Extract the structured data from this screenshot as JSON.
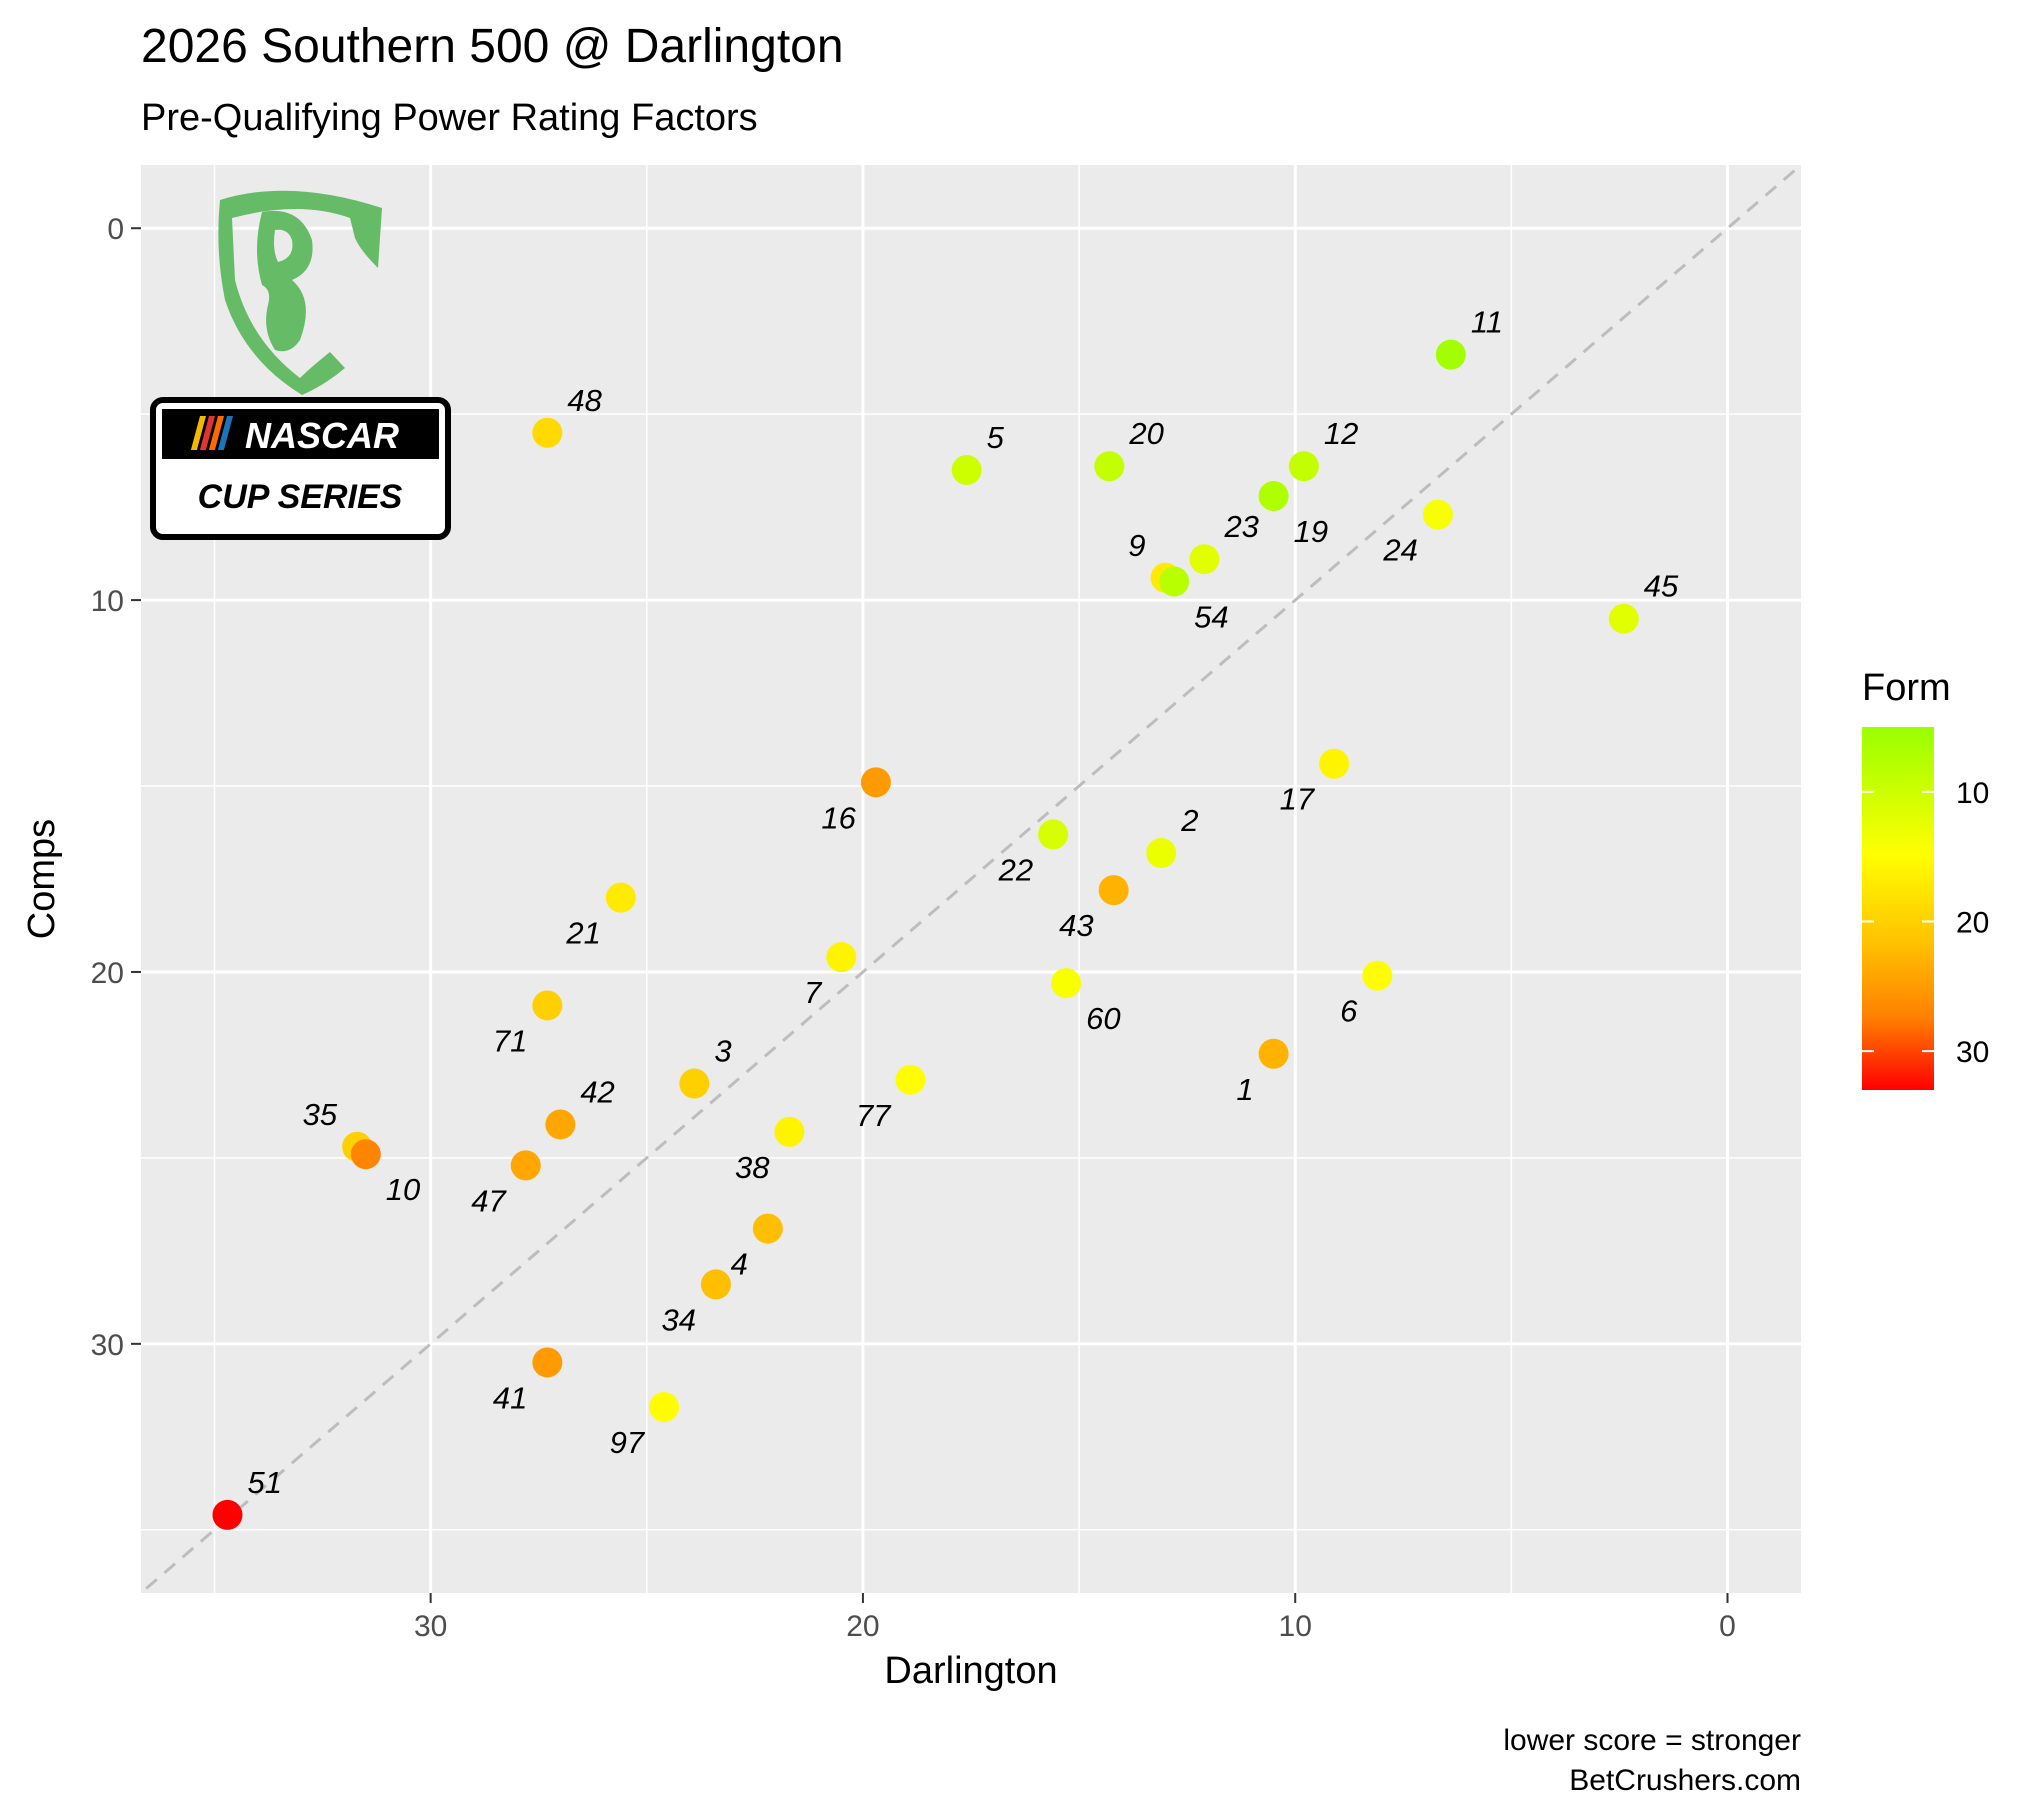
{
  "title": "2026 Southern 500 @ Darlington",
  "subtitle": "Pre-Qualifying Power Rating Factors",
  "caption": [
    "lower score = stronger",
    "BetCrushers.com"
  ],
  "logos": {
    "brand_mark": "BC",
    "series_top": "NASCAR",
    "series_bottom": "CUP SERIES"
  },
  "colors": {
    "panel_bg": "#ebebeb",
    "grid": "#ffffff",
    "diagonal": "#bdbdbd",
    "logo_green": "#66bb66",
    "form_low": "#99ff00",
    "form_mid": "#ffff00",
    "form_high": "#ff0000"
  },
  "chart_data": {
    "type": "scatter",
    "title": "2026 Southern 500 @ Darlington",
    "subtitle": "Pre-Qualifying Power Rating Factors",
    "xlabel": "Darlington",
    "ylabel": "Comps",
    "x_reversed": true,
    "y_reversed": true,
    "xlim": [
      36.7,
      -1.7
    ],
    "ylim": [
      -1.7,
      36.7
    ],
    "x_ticks": [
      30,
      20,
      10,
      0
    ],
    "y_ticks": [
      0,
      10,
      20,
      30
    ],
    "grid": true,
    "reference_line": "y = x (dashed)",
    "legend": {
      "title": "Form",
      "placement": "right",
      "type": "colorbar",
      "ticks": [
        10,
        20,
        30
      ],
      "range": [
        5,
        33
      ]
    },
    "points": [
      {
        "label": "11",
        "x": 6.4,
        "y": 3.4,
        "form": 6
      },
      {
        "label": "48",
        "x": 27.3,
        "y": 5.5,
        "form": 19
      },
      {
        "label": "5",
        "x": 17.6,
        "y": 6.5,
        "form": 10
      },
      {
        "label": "20",
        "x": 14.3,
        "y": 6.4,
        "form": 9
      },
      {
        "label": "12",
        "x": 9.8,
        "y": 6.4,
        "form": 9
      },
      {
        "label": "19",
        "x": 10.5,
        "y": 7.2,
        "form": 7
      },
      {
        "label": "24",
        "x": 6.7,
        "y": 7.7,
        "form": 14
      },
      {
        "label": "23",
        "x": 12.1,
        "y": 8.9,
        "form": 12
      },
      {
        "label": "9",
        "x": 13.0,
        "y": 9.4,
        "form": 17
      },
      {
        "label": "54",
        "x": 12.8,
        "y": 9.5,
        "form": 8
      },
      {
        "label": "45",
        "x": 2.4,
        "y": 10.5,
        "form": 12
      },
      {
        "label": "17",
        "x": 9.1,
        "y": 14.4,
        "form": 16
      },
      {
        "label": "16",
        "x": 19.7,
        "y": 14.9,
        "form": 25
      },
      {
        "label": "22",
        "x": 15.6,
        "y": 16.3,
        "form": 11
      },
      {
        "label": "2",
        "x": 13.1,
        "y": 16.8,
        "form": 13
      },
      {
        "label": "43",
        "x": 14.2,
        "y": 17.8,
        "form": 23
      },
      {
        "label": "21",
        "x": 25.6,
        "y": 18.0,
        "form": 17
      },
      {
        "label": "7",
        "x": 20.5,
        "y": 19.6,
        "form": 16
      },
      {
        "label": "60",
        "x": 15.3,
        "y": 20.3,
        "form": 14
      },
      {
        "label": "6",
        "x": 8.1,
        "y": 20.1,
        "form": 15
      },
      {
        "label": "71",
        "x": 27.3,
        "y": 20.9,
        "form": 20
      },
      {
        "label": "1",
        "x": 10.5,
        "y": 22.2,
        "form": 23
      },
      {
        "label": "3",
        "x": 23.9,
        "y": 23.0,
        "form": 20
      },
      {
        "label": "77",
        "x": 18.9,
        "y": 22.9,
        "form": 15
      },
      {
        "label": "42",
        "x": 27.0,
        "y": 24.1,
        "form": 24
      },
      {
        "label": "38",
        "x": 21.7,
        "y": 24.3,
        "form": 16
      },
      {
        "label": "35",
        "x": 31.7,
        "y": 24.7,
        "form": 20
      },
      {
        "label": "10",
        "x": 31.5,
        "y": 24.9,
        "form": 27
      },
      {
        "label": "47",
        "x": 27.8,
        "y": 25.2,
        "form": 24
      },
      {
        "label": "4",
        "x": 22.2,
        "y": 26.9,
        "form": 22
      },
      {
        "label": "34",
        "x": 23.4,
        "y": 28.4,
        "form": 22
      },
      {
        "label": "41",
        "x": 27.3,
        "y": 30.5,
        "form": 25
      },
      {
        "label": "97",
        "x": 24.6,
        "y": 31.7,
        "form": 15
      },
      {
        "label": "51",
        "x": 34.7,
        "y": 34.6,
        "form": 33
      }
    ]
  }
}
